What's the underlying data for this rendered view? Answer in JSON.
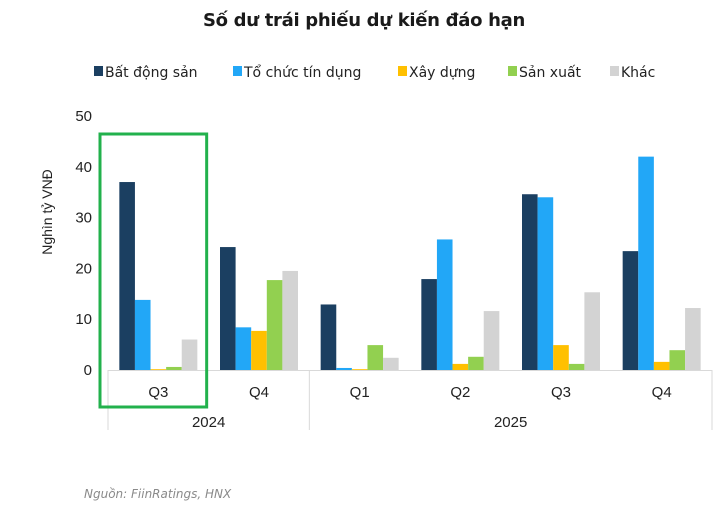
{
  "chart_data": {
    "type": "bar",
    "title": "Số dư trái phiếu dự kiến đáo hạn",
    "xlabel": "",
    "ylabel": "Nghìn tỷ VNĐ",
    "ylim": [
      0,
      50
    ],
    "yticks": [
      0,
      10,
      20,
      30,
      40,
      50
    ],
    "grid": false,
    "legend_position": "top",
    "categories": [
      "Q3",
      "Q4",
      "Q1",
      "Q2",
      "Q3",
      "Q4"
    ],
    "category_groups": [
      {
        "label": "2024",
        "span": 2
      },
      {
        "label": "2025",
        "span": 4
      }
    ],
    "series": [
      {
        "name": "Bất động sản",
        "color": "#1B3F61",
        "values": [
          37.0,
          24.2,
          12.9,
          17.9,
          34.6,
          23.4
        ]
      },
      {
        "name": "Tổ chức tín dụng",
        "color": "#22A7F7",
        "values": [
          13.8,
          8.4,
          0.4,
          25.7,
          34.0,
          42.0
        ]
      },
      {
        "name": "Xây dựng",
        "color": "#FFC000",
        "values": [
          0.1,
          7.7,
          0.1,
          1.2,
          4.9,
          1.6
        ]
      },
      {
        "name": "Sản xuất",
        "color": "#92D050",
        "values": [
          0.6,
          17.7,
          4.9,
          2.6,
          1.2,
          3.9
        ]
      },
      {
        "name": "Khác",
        "color": "#D3D3D3",
        "values": [
          6.0,
          19.5,
          2.4,
          11.6,
          15.3,
          12.2
        ]
      }
    ],
    "annotations": [
      {
        "type": "highlight-box",
        "target_category_index": 0,
        "color": "#22B14C"
      }
    ]
  },
  "source": "Nguồn: FiinRatings, HNX"
}
